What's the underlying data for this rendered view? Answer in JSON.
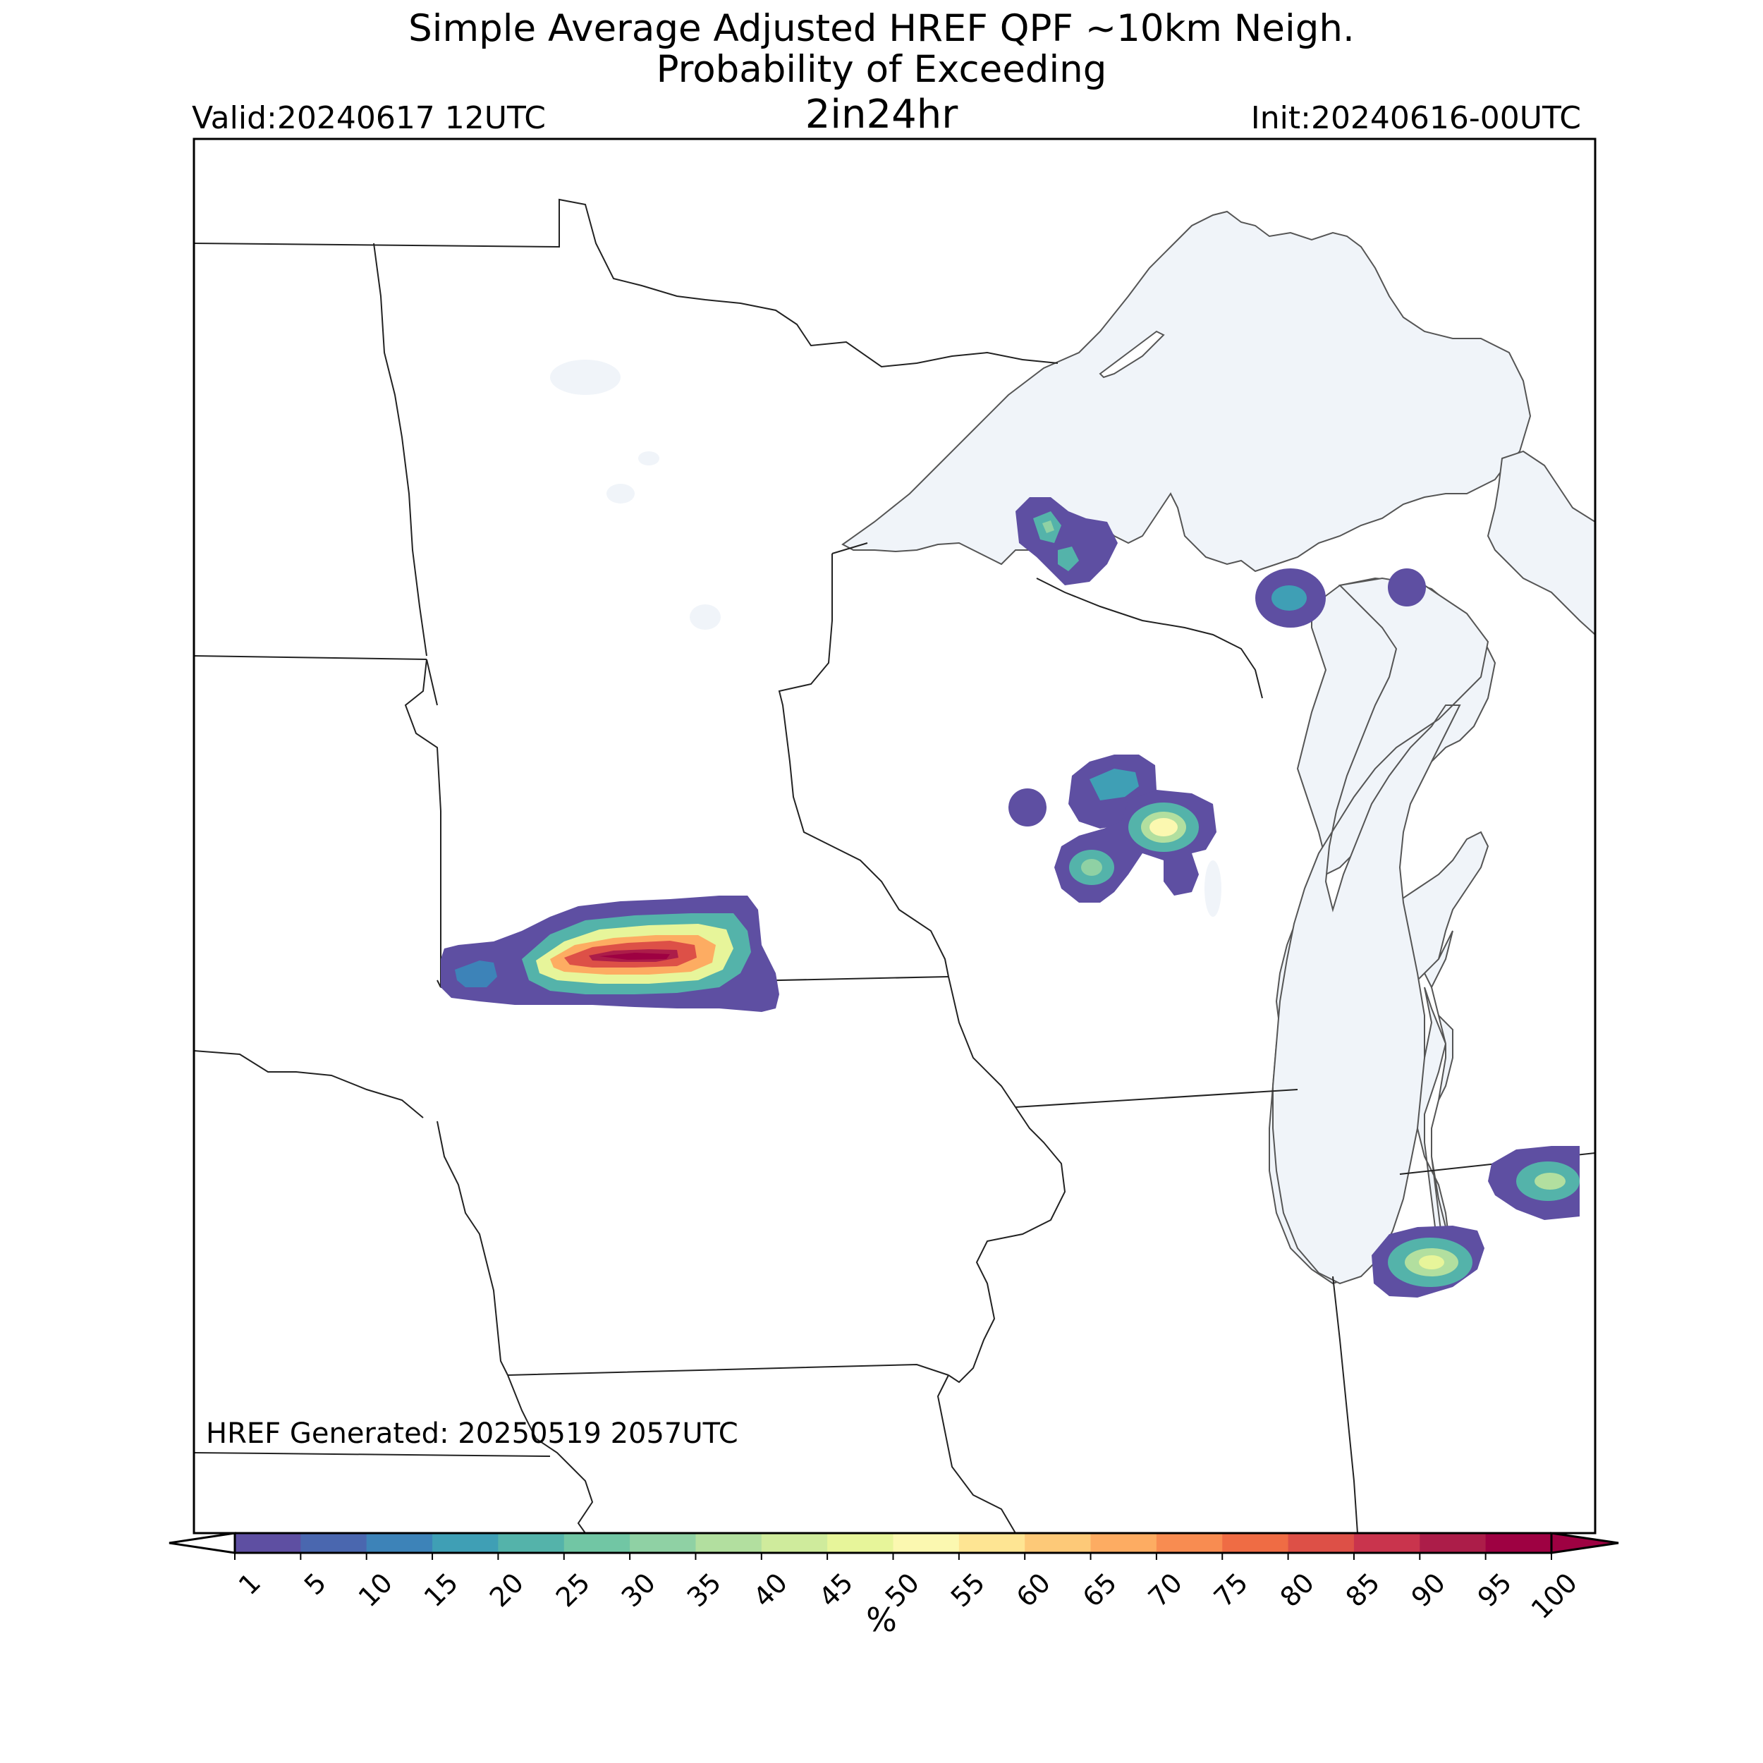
{
  "header": {
    "title_line1": "Simple Average Adjusted HREF QPF ~10km Neigh.",
    "title_line2": "Probability of Exceeding",
    "threshold": "2in24hr",
    "valid": "Valid:20240617 12UTC",
    "init": "Init:20240616-00UTC"
  },
  "footer": {
    "generated": "HREF Generated: 20250519 2057UTC"
  },
  "colorbar": {
    "label": "%",
    "ticks": [
      "1",
      "5",
      "10",
      "15",
      "20",
      "25",
      "30",
      "35",
      "40",
      "45",
      "50",
      "55",
      "60",
      "65",
      "70",
      "75",
      "80",
      "85",
      "90",
      "95",
      "100"
    ],
    "colors": [
      "#5e4fa2",
      "#4a67af",
      "#3d83b8",
      "#3f9fb5",
      "#54b3aa",
      "#71c6a4",
      "#8fd1a4",
      "#b2df9f",
      "#cfeb9c",
      "#e7f59a",
      "#fbf8b0",
      "#fee593",
      "#fdc978",
      "#fdac62",
      "#f88c51",
      "#ef6c44",
      "#dd5047",
      "#c9344d",
      "#ac1d49",
      "#9e0142"
    ],
    "extend": "both"
  },
  "map": {
    "land_color": "#ffffff",
    "water_color": "#f0f4f9",
    "region": "Upper Midwest / Great Lakes",
    "max_probability_area": "southern Minnesota near Iowa border"
  }
}
